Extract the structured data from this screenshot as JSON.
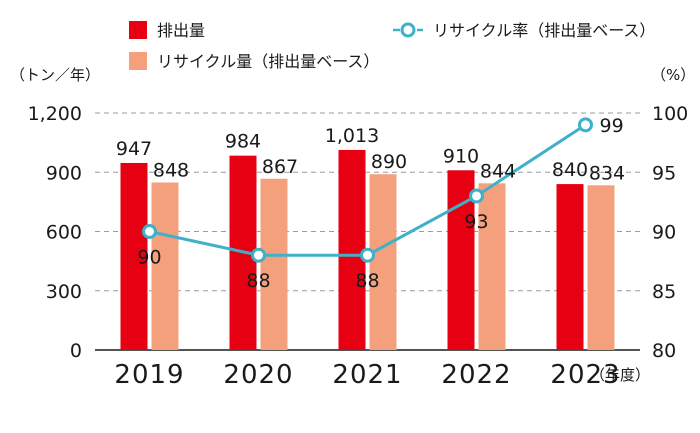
{
  "chart_data": {
    "type": "bar",
    "categories": [
      "2019",
      "2020",
      "2021",
      "2022",
      "2023"
    ],
    "series": [
      {
        "name": "排出量",
        "kind": "bar",
        "axis": "left",
        "color": "#e60012",
        "values": [
          947,
          984,
          1013,
          910,
          840
        ],
        "labels": [
          "947",
          "984",
          "1,013",
          "910",
          "840"
        ]
      },
      {
        "name": "リサイクル量（排出量ベース）",
        "kind": "bar",
        "axis": "left",
        "color": "#f4a07c",
        "values": [
          848,
          867,
          890,
          844,
          834
        ],
        "labels": [
          "848",
          "867",
          "890",
          "844",
          "834"
        ]
      },
      {
        "name": "リサイクル率（排出量ベース）",
        "kind": "line",
        "axis": "right",
        "color": "#3eb1c8",
        "values": [
          90,
          88,
          88,
          93,
          99
        ],
        "labels": [
          "90",
          "88",
          "88",
          "93",
          "99"
        ]
      }
    ],
    "left_axis": {
      "unit": "（トン／年）",
      "ylim": [
        0,
        1200
      ],
      "ticks": [
        "0",
        "300",
        "600",
        "900",
        "1,200"
      ]
    },
    "right_axis": {
      "unit": "（%）",
      "ylim": [
        80,
        100
      ],
      "ticks": [
        "80",
        "85",
        "90",
        "95",
        "100"
      ]
    },
    "x_unit": "（年度）",
    "grid": true,
    "legend_position": "top"
  }
}
